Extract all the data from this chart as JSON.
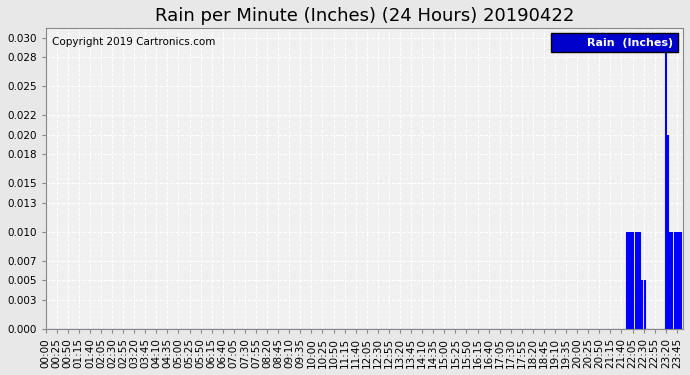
{
  "title": "Rain per Minute (Inches) (24 Hours) 20190422",
  "copyright_text": "Copyright 2019 Cartronics.com",
  "legend_label": "Rain  (Inches)",
  "ylabel_values": [
    0.0,
    0.003,
    0.005,
    0.007,
    0.01,
    0.013,
    0.015,
    0.018,
    0.02,
    0.022,
    0.025,
    0.028,
    0.03
  ],
  "ylim": [
    0.0,
    0.031
  ],
  "line_color": "#0000ff",
  "background_color": "#e8e8e8",
  "plot_bg_color": "#f0f0f0",
  "grid_color": "#ffffff",
  "title_fontsize": 13,
  "tick_fontsize": 7.5,
  "rain_events": [
    {
      "minute": 1312,
      "value": 0.01
    },
    {
      "minute": 1317,
      "value": 0.01
    },
    {
      "minute": 1322,
      "value": 0.01
    },
    {
      "minute": 1327,
      "value": 0.01
    },
    {
      "minute": 1332,
      "value": 0.01
    },
    {
      "minute": 1337,
      "value": 0.01
    },
    {
      "minute": 1342,
      "value": 0.01
    },
    {
      "minute": 1347,
      "value": 0.005
    },
    {
      "minute": 1352,
      "value": 0.005
    },
    {
      "minute": 1400,
      "value": 0.03
    },
    {
      "minute": 1405,
      "value": 0.02
    },
    {
      "minute": 1410,
      "value": 0.01
    },
    {
      "minute": 1415,
      "value": 0.01
    },
    {
      "minute": 1420,
      "value": 0.01
    },
    {
      "minute": 1425,
      "value": 0.01
    },
    {
      "minute": 1430,
      "value": 0.01
    },
    {
      "minute": 1435,
      "value": 0.01
    }
  ],
  "total_minutes": 1440,
  "xtick_interval_minutes": 25,
  "xtick_labels_interval": 1
}
